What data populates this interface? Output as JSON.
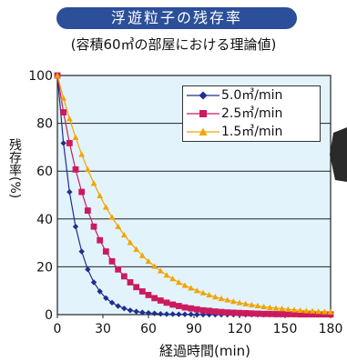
{
  "chart_data": {
    "type": "line",
    "title": "浮遊粒子の残存率",
    "subtitle": "(容積60㎥の部屋における理論値)",
    "xlabel": "経過時間(min)",
    "ylabel": "残存率(%)",
    "xlim": [
      0,
      180
    ],
    "ylim": [
      0,
      100
    ],
    "xticks": [
      "0",
      "30",
      "60",
      "90",
      "120",
      "150",
      "180"
    ],
    "yticks": [
      "0",
      "20",
      "40",
      "60",
      "80",
      "100"
    ],
    "legend_position": "top-right",
    "grid": "horizontal",
    "plot_background": "#e3f3fb",
    "series": [
      {
        "name": "5.0㎥/min",
        "rate": 5.0,
        "marker": "diamond",
        "color": "#1f2f8f",
        "x": [
          0,
          4,
          8,
          12,
          16,
          20,
          24,
          28,
          32,
          36,
          40,
          44,
          48,
          52,
          56,
          60,
          64,
          68,
          72,
          76,
          80,
          84,
          88,
          92,
          96,
          100,
          104,
          108,
          112,
          116,
          120,
          124,
          128,
          132,
          136,
          140,
          144,
          148,
          152,
          156,
          160,
          164,
          168,
          172,
          176,
          180
        ],
        "y": [
          100,
          71.7,
          51.3,
          36.8,
          26.4,
          18.9,
          13.5,
          9.7,
          6.9,
          5.0,
          3.6,
          2.6,
          1.8,
          1.3,
          0.9,
          0.7,
          0.5,
          0.3,
          0.2,
          0.2,
          0.1,
          0.1,
          0.1,
          0.0,
          0.0,
          0.0,
          0.0,
          0.0,
          0.0,
          0.0,
          0.0,
          0.0,
          0.0,
          0.0,
          0.0,
          0.0,
          0.0,
          0.0,
          0.0,
          0.0,
          0.0,
          0.0,
          0.0,
          0.0,
          0.0,
          0.0
        ]
      },
      {
        "name": "2.5㎥/min",
        "rate": 2.5,
        "marker": "square",
        "color": "#cc1a5e",
        "x": [
          0,
          4,
          8,
          12,
          16,
          20,
          24,
          28,
          32,
          36,
          40,
          44,
          48,
          52,
          56,
          60,
          64,
          68,
          72,
          76,
          80,
          84,
          88,
          92,
          96,
          100,
          104,
          108,
          112,
          116,
          120,
          124,
          128,
          132,
          136,
          140,
          144,
          148,
          152,
          156,
          160,
          164,
          168,
          172,
          176,
          180
        ],
        "y": [
          100,
          84.6,
          71.7,
          60.7,
          51.3,
          43.5,
          36.8,
          31.1,
          26.4,
          22.3,
          18.9,
          16.0,
          13.5,
          11.5,
          9.7,
          8.2,
          6.9,
          5.9,
          5.0,
          4.2,
          3.6,
          3.0,
          2.6,
          2.2,
          1.8,
          1.6,
          1.3,
          1.1,
          0.9,
          0.8,
          0.7,
          0.6,
          0.5,
          0.4,
          0.3,
          0.3,
          0.2,
          0.2,
          0.2,
          0.2,
          0.1,
          0.1,
          0.1,
          0.1,
          0.1,
          0.1
        ]
      },
      {
        "name": "1.5㎥/min",
        "rate": 1.5,
        "marker": "triangle",
        "color": "#f0a500",
        "x": [
          0,
          4,
          8,
          12,
          16,
          20,
          24,
          28,
          32,
          36,
          40,
          44,
          48,
          52,
          56,
          60,
          64,
          68,
          72,
          76,
          80,
          84,
          88,
          92,
          96,
          100,
          104,
          108,
          112,
          116,
          120,
          124,
          128,
          132,
          136,
          140,
          144,
          148,
          152,
          156,
          160,
          164,
          168,
          172,
          176,
          180
        ],
        "y": [
          100,
          90.5,
          81.9,
          74.1,
          67.0,
          60.7,
          54.9,
          49.7,
          44.9,
          40.7,
          36.8,
          33.3,
          30.1,
          27.3,
          24.7,
          22.3,
          20.2,
          18.3,
          16.5,
          15.0,
          13.5,
          12.2,
          11.1,
          10.0,
          9.1,
          8.2,
          7.4,
          6.7,
          6.1,
          5.5,
          5.0,
          4.5,
          4.1,
          3.7,
          3.3,
          3.0,
          2.7,
          2.5,
          2.2,
          2.0,
          1.8,
          1.6,
          1.5,
          1.3,
          1.2,
          1.1
        ]
      }
    ]
  }
}
